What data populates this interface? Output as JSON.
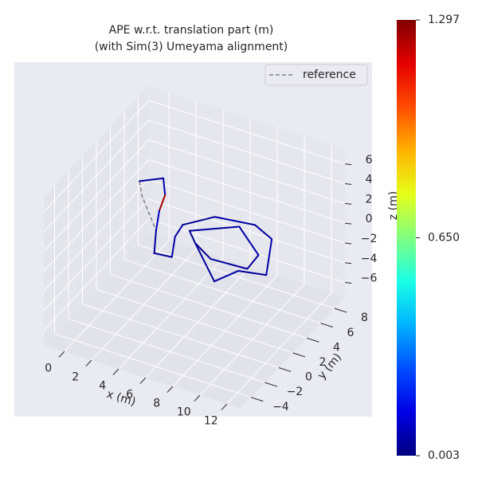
{
  "chart_data": {
    "type": "trajectory3d",
    "title": "APE w.r.t. translation part (m)",
    "subtitle": "(with Sim(3) Umeyama alignment)",
    "xlabel": "x (m)",
    "ylabel": "y (m)",
    "zlabel": "z (m)",
    "xlim": [
      -1.5,
      13
    ],
    "ylim": [
      -5.5,
      9.5
    ],
    "zlim": [
      -7.5,
      7.5
    ],
    "xticks": [
      0,
      2,
      4,
      6,
      8,
      10,
      12
    ],
    "yticks": [
      {
        "value": -4,
        "label": "−4"
      },
      {
        "value": -2,
        "label": "−2"
      },
      0,
      2,
      4,
      6,
      8
    ],
    "zticks": [
      {
        "value": -6,
        "label": "−6"
      },
      {
        "value": -4,
        "label": "−4"
      },
      {
        "value": -2,
        "label": "−2"
      },
      0,
      2,
      4,
      6
    ],
    "grid": true,
    "legend": "upper right",
    "series": [
      {
        "name": "reference",
        "color": "#808080",
        "linestyle": "dashed",
        "x": [
          0.7,
          1.6,
          2.7,
          3.8,
          5.0,
          4.1,
          3.9,
          5.3,
          8.0,
          9.7,
          11.3,
          9.5,
          8.7,
          5.6,
          4.6,
          7.2,
          9.8,
          9.9,
          7.3,
          5.6
        ],
        "y": [
          3.9,
          2.5,
          2.4,
          0.0,
          0.2,
          2.4,
          3.9,
          5.8,
          6.3,
          5.4,
          1.5,
          1.0,
          -0.9,
          2.4,
          3.5,
          5.6,
          3.3,
          1.5,
          1.3,
          2.4
        ],
        "z": [
          3,
          3,
          0,
          0,
          0,
          0,
          0,
          0,
          0,
          0,
          0,
          0,
          0,
          0,
          0,
          0,
          0,
          0,
          0,
          0
        ]
      },
      {
        "colormap": "jet",
        "x": [
          0.7,
          1.9,
          2.9,
          3.4,
          2.7,
          3.8,
          5.0,
          4.1,
          3.9,
          5.3,
          8.0,
          9.7,
          11.3,
          9.5,
          8.7,
          5.6,
          4.6,
          7.2,
          9.8,
          9.9,
          7.3,
          5.6
        ],
        "y": [
          3.9,
          5.0,
          3.3,
          1.5,
          2.4,
          0.0,
          0.2,
          2.4,
          3.9,
          5.8,
          6.3,
          5.4,
          1.5,
          1.0,
          -0.9,
          2.4,
          3.5,
          5.6,
          3.3,
          1.5,
          1.3,
          2.4
        ],
        "z": [
          3,
          3,
          3,
          3,
          0,
          0,
          0,
          0,
          0,
          0,
          0,
          0,
          0,
          0,
          0,
          0,
          0,
          0,
          0,
          0,
          0,
          0
        ],
        "error": [
          0.05,
          0.04,
          0.06,
          1.25,
          0.08,
          0.04,
          0.03,
          0.05,
          0.04,
          0.03,
          0.05,
          0.04,
          0.06,
          0.03,
          0.05,
          0.04,
          0.03,
          0.04,
          0.05,
          0.03,
          0.04,
          0.03
        ]
      }
    ],
    "colorbar": {
      "clim": [
        0.003,
        1.297
      ],
      "ticks": [
        0.003,
        {
          "value": 0.65,
          "label": "0.650"
        },
        1.297
      ]
    }
  }
}
